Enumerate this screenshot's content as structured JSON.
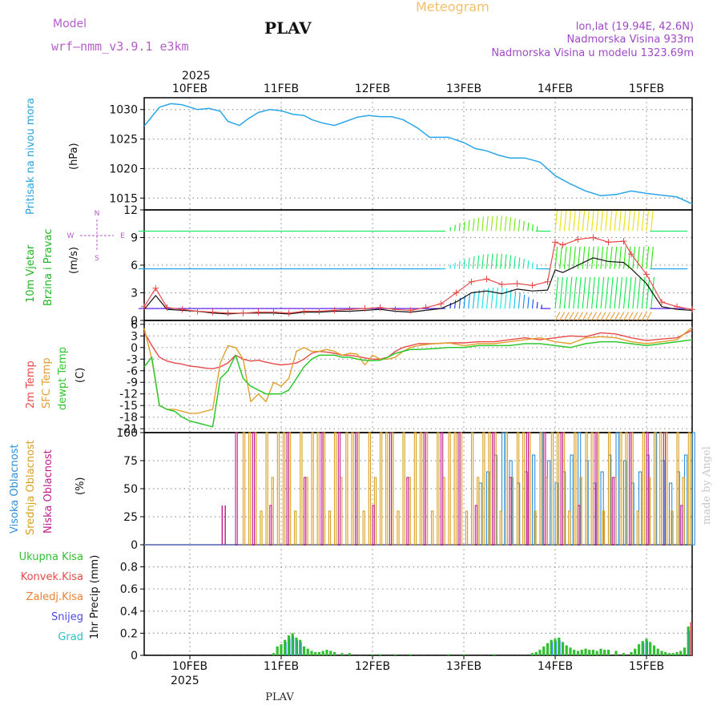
{
  "colors": {
    "pressure": "#2aa6e8",
    "temp": "#e84a4a",
    "sfc_temp": "#e0a030",
    "dewpt": "#2ec82e",
    "wind_label": "#22b422",
    "pressure_label": "#29a3e0",
    "cloud_high": "#2f8fd8",
    "cloud_mid": "#d8a020",
    "cloud_low": "#c21d8e",
    "precip_total": "#31c031",
    "precip_conv": "#e84a4a",
    "precip_frz": "#f08030",
    "precip_snow": "#4a4ae0",
    "precip_hail": "#30c0c0",
    "model": "#b55ec8",
    "meteogram": "#f2c068",
    "info": "#a048c8",
    "watermark": "#c8c8c8",
    "wind_low": "#8a2be2"
  },
  "header": {
    "model_label": "Model",
    "model_name": "wrf—nmm_v3.9.1  e3km",
    "title": "PLAV",
    "meteogram_label": "Meteogram",
    "lonlat": "lon,lat (19.94E, 42.6N)",
    "altitude": "Nadmorska Visina 933m",
    "model_altitude": "Nadmorska Visina u modelu 1323.69m",
    "year_top": "2025",
    "year_bottom": "2025",
    "footer_title": "PLAV",
    "watermark": "made by Angel"
  },
  "labels": {
    "p1_title": "Pritisak na nivou mora",
    "p1_unit": "(hPa)",
    "p2_title_a": "10m Vjetar",
    "p2_title_b": "Brzina i Pravac",
    "p2_unit": "(m/s)",
    "compass_n": "N",
    "compass_w": "W",
    "compass_e": "E",
    "compass_s": "S",
    "p3_title_a": "2m Temp",
    "p3_title_b": "SFC Temp",
    "p3_title_c": "dewpt Temp",
    "p3_unit": "(C)",
    "p4_title_a": "Visoka Oblacnost",
    "p4_title_b": "Srednja Oblacnost",
    "p4_title_c": "Niska Oblacnost",
    "p4_unit": "(%)",
    "p5_legend": [
      "Ukupna Kisa",
      "Konvek.Kisa",
      "Zaledj.Kisa",
      "Snijeg",
      "Grad"
    ],
    "p5_unit": "1hr Precip (mm)"
  },
  "chart_data": {
    "type": "line",
    "x_unit": "hours since 2025-02-09 12:00",
    "x_range": [
      0,
      144
    ],
    "days": [
      "10FEB",
      "11FEB",
      "12FEB",
      "13FEB",
      "14FEB",
      "15FEB"
    ],
    "day_hours": [
      12,
      36,
      60,
      84,
      108,
      132
    ],
    "pressure": {
      "ylim": [
        1013,
        1032
      ],
      "yticks": [
        1015,
        1020,
        1025,
        1030
      ],
      "x": [
        0,
        2,
        4,
        7,
        10,
        14,
        17,
        20,
        22,
        25,
        27,
        30,
        33,
        36,
        39,
        42,
        44,
        47,
        50,
        53,
        56,
        59,
        62,
        65,
        68,
        72,
        75,
        80,
        84,
        87,
        90,
        93,
        96,
        100,
        104,
        108,
        112,
        116,
        120,
        124,
        128,
        132,
        136,
        140,
        144
      ],
      "y": [
        1027.2,
        1028.8,
        1030.4,
        1031.0,
        1030.8,
        1030.0,
        1030.2,
        1029.7,
        1028.0,
        1027.3,
        1028.3,
        1029.5,
        1030.0,
        1029.8,
        1029.2,
        1029.0,
        1028.3,
        1027.7,
        1027.3,
        1028.0,
        1028.7,
        1029.0,
        1028.8,
        1028.8,
        1028.3,
        1026.8,
        1025.3,
        1025.3,
        1024.4,
        1023.4,
        1023.0,
        1022.3,
        1021.8,
        1021.8,
        1021.1,
        1018.8,
        1017.4,
        1016.2,
        1015.4,
        1015.6,
        1016.2,
        1015.8,
        1015.5,
        1015.2,
        1014.0
      ]
    },
    "wind": {
      "ylim": [
        0,
        12
      ],
      "yticks": [
        0,
        3,
        6,
        9,
        12
      ],
      "x": [
        0,
        3,
        6,
        10,
        14,
        18,
        22,
        26,
        30,
        34,
        38,
        42,
        46,
        50,
        54,
        58,
        62,
        66,
        70,
        74,
        78,
        82,
        86,
        90,
        94,
        98,
        102,
        106,
        108,
        110,
        114,
        118,
        122,
        126,
        128,
        132,
        136,
        140,
        144
      ],
      "speed": [
        1.2,
        2.7,
        1.2,
        1.1,
        1.0,
        0.8,
        0.7,
        0.8,
        0.8,
        0.8,
        0.7,
        0.9,
        0.9,
        1.0,
        1.0,
        1.1,
        1.2,
        1.0,
        0.9,
        1.1,
        1.3,
        2.0,
        3.0,
        3.2,
        2.9,
        3.4,
        3.2,
        3.3,
        5.5,
        5.2,
        6.0,
        6.8,
        6.4,
        6.3,
        5.6,
        4.0,
        1.5,
        1.2,
        1.1
      ],
      "gust": [
        1.5,
        3.5,
        1.4,
        1.2,
        1.0,
        0.9,
        0.8,
        0.8,
        0.9,
        0.9,
        0.8,
        1.0,
        1.0,
        1.1,
        1.2,
        1.3,
        1.4,
        1.2,
        1.1,
        1.4,
        1.8,
        3.0,
        4.2,
        4.5,
        3.9,
        4.0,
        3.8,
        4.2,
        8.5,
        8.2,
        8.8,
        9.0,
        8.5,
        8.6,
        7.2,
        5.0,
        2.0,
        1.5,
        1.2
      ]
    },
    "temperature": {
      "ylim": [
        -22,
        7
      ],
      "yticks": [
        -21,
        -18,
        -15,
        -12,
        -9,
        -6,
        -3,
        0,
        3,
        6
      ],
      "x": [
        0,
        2,
        4,
        6,
        8,
        10,
        12,
        14,
        16,
        18,
        20,
        22,
        24,
        26,
        28,
        30,
        32,
        34,
        36,
        38,
        40,
        42,
        44,
        46,
        48,
        50,
        52,
        54,
        56,
        58,
        60,
        62,
        64,
        66,
        68,
        70,
        72,
        76,
        80,
        84,
        88,
        92,
        96,
        100,
        104,
        108,
        112,
        116,
        120,
        124,
        128,
        132,
        136,
        140,
        144
      ],
      "t2m": [
        4.0,
        0.5,
        -2.5,
        -3.5,
        -4.0,
        -4.3,
        -4.8,
        -5.0,
        -5.3,
        -5.5,
        -5.0,
        -4.0,
        -2.0,
        -3.0,
        -3.5,
        -3.3,
        -3.8,
        -4.2,
        -4.5,
        -4.3,
        -4.0,
        -3.0,
        -1.5,
        -1.0,
        -1.2,
        -1.5,
        -2.0,
        -2.0,
        -2.3,
        -2.7,
        -3.0,
        -3.0,
        -2.5,
        -1.0,
        0.0,
        0.5,
        1.0,
        1.0,
        1.2,
        1.2,
        1.5,
        1.5,
        2.0,
        2.5,
        2.0,
        2.5,
        3.0,
        2.8,
        3.8,
        3.5,
        2.5,
        1.8,
        2.2,
        2.5,
        4.5
      ],
      "tsfc": [
        5.0,
        -3.0,
        -15.0,
        -16.0,
        -16.0,
        -16.5,
        -17.0,
        -17.0,
        -16.5,
        -16.0,
        -4.0,
        0.5,
        0.0,
        -3.0,
        -14.0,
        -12.0,
        -14.0,
        -9.0,
        -10.0,
        -8.0,
        -1.0,
        0.0,
        -1.0,
        -1.0,
        -0.5,
        -1.0,
        -2.0,
        -1.5,
        -1.7,
        -4.5,
        -2.0,
        -3.0,
        -3.0,
        -2.5,
        -1.0,
        0.0,
        0.5,
        1.0,
        1.2,
        0.5,
        1.0,
        1.0,
        1.5,
        2.0,
        2.5,
        1.5,
        1.0,
        2.5,
        2.8,
        2.5,
        1.5,
        1.0,
        1.5,
        2.0,
        5.2
      ]
    },
    "dewpoint": {
      "x": [
        0,
        2,
        4,
        6,
        8,
        10,
        12,
        14,
        16,
        18,
        20,
        22,
        24,
        26,
        28,
        30,
        32,
        34,
        36,
        38,
        40,
        42,
        44,
        46,
        48,
        50,
        52,
        54,
        56,
        58,
        60,
        62,
        64,
        66,
        68,
        70,
        72,
        76,
        80,
        84,
        88,
        92,
        96,
        100,
        104,
        108,
        112,
        116,
        120,
        124,
        128,
        132,
        136,
        140,
        144
      ],
      "y": [
        -5.0,
        -2.5,
        -15.0,
        -16.0,
        -16.5,
        -18.0,
        -19.0,
        -19.5,
        -20.0,
        -20.5,
        -8.0,
        -6.0,
        -2.0,
        -8.0,
        -10.0,
        -11.0,
        -12.0,
        -12.0,
        -12.0,
        -11.0,
        -8.0,
        -5.0,
        -3.0,
        -2.0,
        -2.0,
        -2.0,
        -2.5,
        -2.5,
        -3.0,
        -3.3,
        -3.4,
        -3.3,
        -2.5,
        -1.5,
        -1.0,
        -0.5,
        -0.5,
        -0.3,
        0.0,
        0.0,
        0.5,
        0.5,
        0.5,
        1.0,
        1.0,
        0.5,
        0.0,
        1.0,
        1.5,
        1.5,
        1.0,
        0.5,
        1.0,
        1.5,
        2.0
      ]
    },
    "clouds": {
      "ylim": [
        0,
        100
      ],
      "yticks": [
        0,
        25,
        50,
        75,
        100
      ],
      "series": [
        {
          "name": "Visoka Oblacnost",
          "from": 88,
          "to": 144,
          "step": 2,
          "levels": [
            55,
            65,
            80,
            100,
            75
          ]
        },
        {
          "name": "Srednja Oblacnost",
          "from": 26,
          "to": 144,
          "step": 1.5,
          "levels": [
            100,
            100,
            100,
            30,
            100,
            60
          ]
        },
        {
          "name": "Niska Oblacnost",
          "from": 24,
          "to": 144,
          "step": 4.5,
          "levels": [
            100,
            100,
            35,
            100,
            60,
            100
          ]
        }
      ]
    },
    "precip": {
      "ylim": [
        0,
        1.0
      ],
      "yticks": [
        0,
        0.2,
        0.4,
        0.6,
        0.8
      ],
      "x": [
        34,
        35,
        36,
        37,
        38,
        39,
        40,
        41,
        42,
        43,
        44,
        45,
        46,
        47,
        48,
        49,
        50,
        52,
        54,
        60,
        62,
        66,
        70,
        80,
        84,
        92,
        102,
        103,
        104,
        105,
        106,
        107,
        108,
        109,
        110,
        111,
        112,
        113,
        114,
        115,
        116,
        117,
        118,
        119,
        120,
        121,
        122,
        124,
        126,
        128,
        129,
        130,
        131,
        132,
        133,
        134,
        135,
        136,
        137,
        138,
        139,
        140,
        141,
        142,
        143
      ],
      "total": [
        0.02,
        0.08,
        0.1,
        0.14,
        0.18,
        0.2,
        0.16,
        0.14,
        0.08,
        0.06,
        0.04,
        0.03,
        0.03,
        0.04,
        0.05,
        0.04,
        0.03,
        0.02,
        0.02,
        0.01,
        0.01,
        0.01,
        0.01,
        0.01,
        0.01,
        0.01,
        0.02,
        0.03,
        0.05,
        0.08,
        0.11,
        0.14,
        0.15,
        0.16,
        0.12,
        0.09,
        0.07,
        0.05,
        0.04,
        0.05,
        0.06,
        0.05,
        0.05,
        0.04,
        0.06,
        0.05,
        0.05,
        0.04,
        0.02,
        0.03,
        0.06,
        0.1,
        0.13,
        0.15,
        0.12,
        0.09,
        0.06,
        0.04,
        0.03,
        0.02,
        0.02,
        0.03,
        0.04,
        0.07,
        0.26
      ],
      "final_bar": {
        "x": 144,
        "value": 0.3
      }
    }
  }
}
